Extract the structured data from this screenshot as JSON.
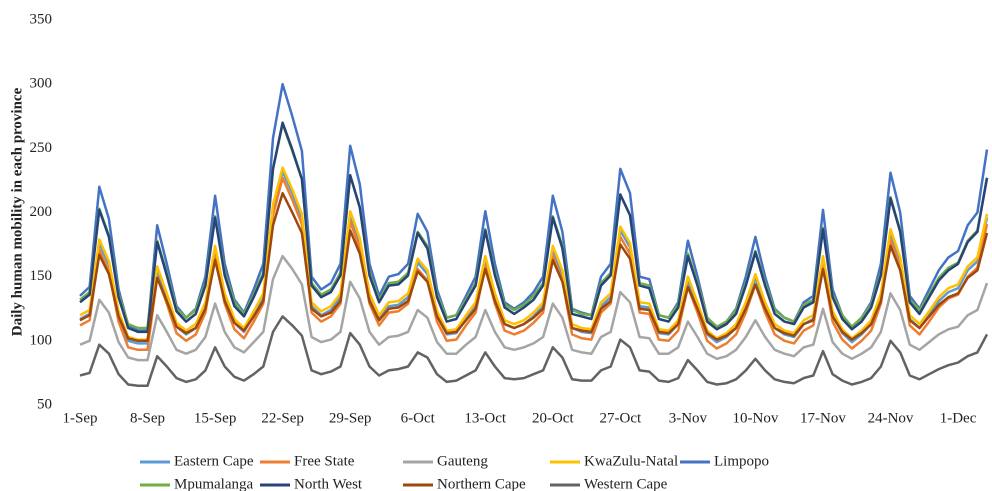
{
  "chart_data": {
    "type": "line",
    "y_label": "Daily human mobility in each province",
    "categories": [
      "1-Sep",
      null,
      null,
      null,
      null,
      null,
      null,
      "8-Sep",
      null,
      null,
      null,
      null,
      null,
      null,
      "15-Sep",
      null,
      null,
      null,
      null,
      null,
      null,
      "22-Sep",
      null,
      null,
      null,
      null,
      null,
      null,
      "29-Sep",
      null,
      null,
      null,
      null,
      null,
      null,
      "6-Oct",
      null,
      null,
      null,
      null,
      null,
      null,
      "13-Oct",
      null,
      null,
      null,
      null,
      null,
      null,
      "20-Oct",
      null,
      null,
      null,
      null,
      null,
      null,
      "27-Oct",
      null,
      null,
      null,
      null,
      null,
      null,
      "3-Nov",
      null,
      null,
      null,
      null,
      null,
      null,
      "10-Nov",
      null,
      null,
      null,
      null,
      null,
      null,
      "17-Nov",
      null,
      null,
      null,
      null,
      null,
      null,
      "24-Nov",
      null,
      null,
      null,
      null,
      null,
      null,
      "1-Dec",
      null,
      null,
      null
    ],
    "ylim": [
      50,
      350
    ],
    "yticks": [
      50,
      100,
      150,
      200,
      250,
      300,
      350
    ],
    "grid": false,
    "series": [
      {
        "name": "Eastern Cape",
        "color": "#5b9bd5",
        "values": [
          117,
          121,
          176,
          159,
          120,
          100,
          98,
          98,
          155,
          134,
          111,
          105,
          110,
          127,
          171,
          134,
          114,
          107,
          120,
          134,
          203,
          232,
          215,
          196,
          127,
          120,
          124,
          134,
          198,
          177,
          134,
          117,
          127,
          128,
          134,
          161,
          152,
          120,
          105,
          106,
          117,
          127,
          163,
          134,
          113,
          110,
          113,
          119,
          127,
          171,
          152,
          110,
          107,
          106,
          127,
          134,
          186,
          173,
          127,
          126,
          106,
          105,
          113,
          147,
          127,
          105,
          99,
          103,
          110,
          127,
          149,
          127,
          110,
          105,
          103,
          113,
          117,
          163,
          120,
          106,
          99,
          105,
          113,
          134,
          184,
          162,
          117,
          110,
          120,
          131,
          138,
          141,
          155,
          162,
          196
        ]
      },
      {
        "name": "Free State",
        "color": "#ed7d31",
        "values": [
          112,
          116,
          171,
          154,
          115,
          95,
          93,
          93,
          150,
          129,
          106,
          100,
          105,
          122,
          166,
          129,
          109,
          102,
          115,
          129,
          198,
          227,
          210,
          191,
          122,
          115,
          119,
          129,
          193,
          172,
          129,
          112,
          122,
          123,
          129,
          156,
          147,
          115,
          100,
          101,
          112,
          122,
          158,
          129,
          108,
          105,
          108,
          114,
          122,
          166,
          147,
          105,
          102,
          101,
          122,
          129,
          181,
          168,
          122,
          121,
          101,
          100,
          108,
          142,
          122,
          100,
          94,
          98,
          105,
          122,
          144,
          122,
          105,
          100,
          98,
          108,
          112,
          158,
          115,
          101,
          94,
          100,
          108,
          129,
          179,
          157,
          112,
          105,
          115,
          126,
          133,
          136,
          150,
          157,
          191
        ]
      },
      {
        "name": "Gauteng",
        "color": "#a5a5a5",
        "values": [
          97,
          100,
          132,
          122,
          99,
          87,
          85,
          85,
          120,
          107,
          93,
          90,
          93,
          103,
          129,
          107,
          95,
          91,
          99,
          107,
          148,
          166,
          156,
          144,
          103,
          99,
          101,
          107,
          146,
          133,
          107,
          97,
          103,
          104,
          107,
          124,
          118,
          99,
          90,
          90,
          97,
          103,
          124,
          107,
          95,
          93,
          95,
          98,
          103,
          129,
          118,
          93,
          91,
          90,
          103,
          107,
          138,
          130,
          103,
          102,
          90,
          90,
          95,
          115,
          103,
          90,
          86,
          88,
          93,
          103,
          116,
          103,
          93,
          90,
          88,
          95,
          97,
          125,
          99,
          90,
          86,
          90,
          95,
          107,
          137,
          124,
          97,
          93,
          99,
          105,
          109,
          111,
          120,
          124,
          145
        ]
      },
      {
        "name": "KwaZulu-Natal",
        "color": "#ffc000",
        "values": [
          120,
          124,
          179,
          162,
          123,
          103,
          101,
          101,
          158,
          137,
          114,
          108,
          113,
          130,
          174,
          137,
          117,
          110,
          123,
          137,
          206,
          235,
          218,
          199,
          130,
          123,
          127,
          137,
          201,
          180,
          137,
          120,
          130,
          131,
          137,
          164,
          155,
          123,
          108,
          109,
          120,
          130,
          166,
          137,
          116,
          113,
          116,
          122,
          130,
          174,
          155,
          113,
          110,
          109,
          130,
          137,
          189,
          176,
          130,
          129,
          109,
          108,
          116,
          150,
          130,
          108,
          102,
          106,
          113,
          130,
          152,
          130,
          113,
          108,
          106,
          116,
          120,
          166,
          123,
          109,
          102,
          108,
          116,
          137,
          187,
          165,
          120,
          113,
          123,
          134,
          141,
          144,
          158,
          165,
          199
        ]
      },
      {
        "name": "Limpopo",
        "color": "#4472c4",
        "values": [
          135,
          142,
          220,
          195,
          140,
          112,
          108,
          108,
          190,
          160,
          127,
          118,
          125,
          150,
          213,
          160,
          132,
          122,
          140,
          160,
          258,
          300,
          275,
          248,
          150,
          140,
          145,
          160,
          252,
          222,
          160,
          135,
          150,
          152,
          160,
          199,
          185,
          140,
          118,
          120,
          135,
          150,
          201,
          160,
          130,
          125,
          130,
          138,
          150,
          213,
          185,
          125,
          122,
          120,
          150,
          160,
          234,
          215,
          150,
          148,
          120,
          118,
          130,
          178,
          150,
          118,
          110,
          115,
          125,
          150,
          181,
          150,
          125,
          118,
          115,
          130,
          135,
          202,
          140,
          120,
          110,
          118,
          130,
          160,
          231,
          200,
          135,
          125,
          140,
          155,
          165,
          170,
          190,
          200,
          249
        ]
      },
      {
        "name": "Mpumalanga",
        "color": "#70ad47",
        "values": [
          132,
          138,
          203,
          182,
          136,
          113,
          110,
          110,
          178,
          153,
          125,
          118,
          124,
          145,
          197,
          153,
          130,
          121,
          136,
          153,
          234,
          269,
          248,
          226,
          145,
          136,
          140,
          153,
          229,
          204,
          153,
          132,
          145,
          146,
          153,
          185,
          174,
          136,
          118,
          120,
          132,
          145,
          187,
          153,
          128,
          124,
          128,
          135,
          145,
          197,
          174,
          124,
          121,
          120,
          145,
          153,
          214,
          198,
          145,
          143,
          120,
          118,
          128,
          168,
          145,
          118,
          111,
          115,
          124,
          145,
          170,
          145,
          124,
          118,
          115,
          128,
          132,
          188,
          136,
          120,
          111,
          118,
          128,
          153,
          212,
          186,
          132,
          124,
          136,
          149,
          157,
          161,
          178,
          186,
          227
        ]
      },
      {
        "name": "North West",
        "color": "#264478",
        "values": [
          130,
          136,
          202,
          181,
          134,
          110,
          107,
          107,
          177,
          151,
          123,
          115,
          121,
          143,
          196,
          151,
          127,
          119,
          134,
          151,
          234,
          270,
          249,
          226,
          143,
          134,
          138,
          151,
          229,
          204,
          151,
          130,
          143,
          144,
          151,
          184,
          172,
          134,
          115,
          117,
          130,
          143,
          186,
          151,
          126,
          121,
          126,
          132,
          143,
          196,
          172,
          121,
          119,
          117,
          143,
          151,
          214,
          198,
          143,
          141,
          117,
          115,
          126,
          166,
          143,
          115,
          109,
          113,
          121,
          143,
          169,
          143,
          121,
          115,
          113,
          126,
          130,
          187,
          134,
          117,
          109,
          115,
          126,
          151,
          211,
          185,
          130,
          121,
          134,
          147,
          155,
          160,
          177,
          185,
          227
        ]
      },
      {
        "name": "Northern Cape",
        "color": "#9e480e",
        "values": [
          116,
          120,
          167,
          152,
          119,
          102,
          100,
          100,
          149,
          131,
          111,
          106,
          110,
          125,
          163,
          131,
          114,
          108,
          119,
          131,
          190,
          215,
          200,
          184,
          125,
          119,
          122,
          131,
          186,
          168,
          131,
          116,
          125,
          126,
          131,
          154,
          146,
          119,
          106,
          107,
          116,
          125,
          156,
          131,
          113,
          110,
          113,
          118,
          125,
          163,
          146,
          110,
          108,
          107,
          125,
          131,
          175,
          164,
          125,
          124,
          107,
          106,
          113,
          142,
          125,
          106,
          101,
          104,
          110,
          125,
          144,
          125,
          110,
          106,
          104,
          113,
          116,
          156,
          119,
          107,
          101,
          106,
          113,
          131,
          174,
          155,
          116,
          110,
          119,
          128,
          134,
          137,
          149,
          155,
          184
        ]
      },
      {
        "name": "Western Cape",
        "color": "#636363",
        "values": [
          73,
          75,
          97,
          90,
          74,
          66,
          65,
          65,
          88,
          80,
          71,
          68,
          70,
          77,
          95,
          80,
          72,
          69,
          74,
          80,
          107,
          119,
          112,
          104,
          77,
          74,
          76,
          80,
          106,
          97,
          80,
          73,
          77,
          78,
          80,
          91,
          87,
          74,
          68,
          69,
          73,
          77,
          91,
          80,
          71,
          70,
          71,
          74,
          77,
          95,
          87,
          70,
          69,
          69,
          77,
          80,
          101,
          95,
          77,
          76,
          69,
          68,
          71,
          85,
          77,
          68,
          66,
          67,
          70,
          77,
          86,
          77,
          70,
          68,
          67,
          71,
          73,
          92,
          74,
          69,
          66,
          68,
          71,
          80,
          100,
          91,
          73,
          70,
          74,
          78,
          81,
          83,
          88,
          91,
          105
        ]
      }
    ]
  }
}
